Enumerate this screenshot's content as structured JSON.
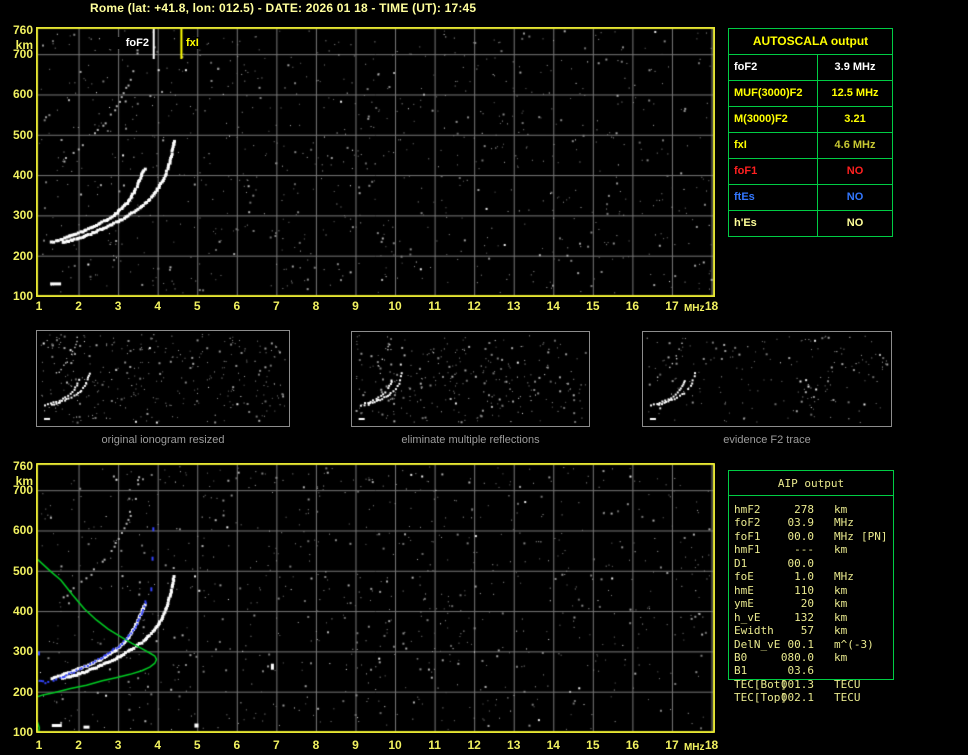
{
  "title": "Rome (lat: +41.8, lon: 012.5) - DATE: 2026 01 18 - TIME (UT): 17:45",
  "axes": {
    "x_ticks": [
      1,
      2,
      3,
      4,
      5,
      6,
      7,
      8,
      9,
      10,
      11,
      12,
      13,
      14,
      15,
      16,
      17,
      18
    ],
    "x_unit": "MHz",
    "y_ticks": [
      760,
      700,
      600,
      500,
      400,
      300,
      200,
      100
    ],
    "y_unit": "km"
  },
  "top_plot": {
    "markers": [
      {
        "name": "foF2",
        "label": "foF2",
        "freq_mhz": 3.9,
        "color": "#ffffff",
        "label_side": "left"
      },
      {
        "name": "fxI",
        "label": "fxI",
        "freq_mhz": 4.6,
        "color": "#ffff00",
        "label_side": "right"
      }
    ]
  },
  "panels": [
    {
      "caption": "original ionogram resized"
    },
    {
      "caption": "eliminate multiple reflections"
    },
    {
      "caption": "evidence F2 trace"
    }
  ],
  "autoscala": {
    "title": "AUTOSCALA output",
    "rows": [
      {
        "label": "foF2",
        "value": "3.9 MHz",
        "color": "#ffffff",
        "value_color": "#ffffff"
      },
      {
        "label": "MUF(3000)F2",
        "value": "12.5 MHz",
        "color": "#ffff00",
        "value_color": "#ffff00"
      },
      {
        "label": "M(3000)F2",
        "value": "3.21",
        "color": "#ffff00",
        "value_color": "#ffff00"
      },
      {
        "label": "fxI",
        "value": "4.6 MHz",
        "color": "#ffff00",
        "value_color": "#c8c832"
      },
      {
        "label": "foF1",
        "value": "NO",
        "color": "#ff2020",
        "value_color": "#ff2020"
      },
      {
        "label": "ftEs",
        "value": "NO",
        "color": "#3377ff",
        "value_color": "#3377ff"
      },
      {
        "label": "h'Es",
        "value": "NO",
        "color": "#ffff99",
        "value_color": "#ffff99"
      }
    ]
  },
  "aip": {
    "title": "AIP output",
    "rows": [
      {
        "label": "hmF2",
        "value": "278",
        "unit": "km",
        "note": ""
      },
      {
        "label": "foF2",
        "value": "03.9",
        "unit": "MHz",
        "note": ""
      },
      {
        "label": "foF1",
        "value": "00.0",
        "unit": "MHz",
        "note": "[PN]"
      },
      {
        "label": "hmF1",
        "value": "---",
        "unit": "km",
        "note": ""
      },
      {
        "label": "D1",
        "value": "00.0",
        "unit": "",
        "note": ""
      },
      {
        "label": "foE",
        "value": "1.0",
        "unit": "MHz",
        "note": ""
      },
      {
        "label": "hmE",
        "value": "110",
        "unit": "km",
        "note": ""
      },
      {
        "label": "ymE",
        "value": "20",
        "unit": "km",
        "note": ""
      },
      {
        "label": "h_vE",
        "value": "132",
        "unit": "km",
        "note": ""
      },
      {
        "label": "Ewidth",
        "value": "57",
        "unit": "km",
        "note": ""
      },
      {
        "label": "DelN_vE",
        "value": "00.1",
        "unit": "m^(-3)",
        "note": ""
      },
      {
        "label": "B0",
        "value": "080.0",
        "unit": "km",
        "note": ""
      },
      {
        "label": "B1",
        "value": "03.6",
        "unit": "",
        "note": ""
      },
      {
        "label": "TEC[Bot]",
        "value": "001.3",
        "unit": "TECU",
        "note": ""
      },
      {
        "label": "TEC[Top]",
        "value": "002.1",
        "unit": "TECU",
        "note": ""
      }
    ]
  },
  "traces": {
    "o_mode": [
      [
        1.32,
        233
      ],
      [
        1.5,
        238
      ],
      [
        1.7,
        245
      ],
      [
        1.9,
        252
      ],
      [
        2.1,
        260
      ],
      [
        2.3,
        268
      ],
      [
        2.5,
        277
      ],
      [
        2.7,
        288
      ],
      [
        2.9,
        300
      ],
      [
        3.05,
        313
      ],
      [
        3.2,
        327
      ],
      [
        3.32,
        343
      ],
      [
        3.42,
        360
      ],
      [
        3.5,
        377
      ],
      [
        3.57,
        393
      ],
      [
        3.63,
        407
      ],
      [
        3.68,
        416
      ],
      [
        3.73,
        421
      ]
    ],
    "x_mode": [
      [
        1.6,
        233
      ],
      [
        1.9,
        240
      ],
      [
        2.2,
        250
      ],
      [
        2.5,
        262
      ],
      [
        2.8,
        275
      ],
      [
        3.1,
        290
      ],
      [
        3.35,
        305
      ],
      [
        3.6,
        322
      ],
      [
        3.8,
        340
      ],
      [
        3.95,
        357
      ],
      [
        4.08,
        378
      ],
      [
        4.18,
        398
      ],
      [
        4.27,
        420
      ],
      [
        4.34,
        447
      ],
      [
        4.39,
        470
      ],
      [
        4.42,
        490
      ]
    ],
    "second_order": [
      [
        1.62,
        432
      ],
      [
        1.8,
        448
      ],
      [
        2.0,
        465
      ],
      [
        2.2,
        483
      ],
      [
        2.4,
        502
      ],
      [
        2.6,
        522
      ],
      [
        2.75,
        538
      ],
      [
        2.9,
        558
      ],
      [
        3.03,
        580
      ],
      [
        3.15,
        603
      ],
      [
        3.25,
        625
      ],
      [
        3.33,
        648
      ],
      [
        3.4,
        668
      ],
      [
        3.46,
        690
      ],
      [
        3.51,
        712
      ],
      [
        3.55,
        735
      ],
      [
        3.58,
        752
      ]
    ],
    "profile_green": [
      [
        0.92,
        532
      ],
      [
        1.1,
        516
      ],
      [
        1.3,
        498
      ],
      [
        1.55,
        477
      ],
      [
        1.85,
        440
      ],
      [
        2.15,
        405
      ],
      [
        2.45,
        378
      ],
      [
        2.75,
        355
      ],
      [
        3.05,
        337
      ],
      [
        3.35,
        320
      ],
      [
        3.6,
        307
      ],
      [
        3.8,
        296
      ],
      [
        3.93,
        288
      ],
      [
        3.97,
        280
      ],
      [
        3.93,
        271
      ],
      [
        3.8,
        261
      ],
      [
        3.6,
        252
      ],
      [
        3.3,
        243
      ],
      [
        3.0,
        236
      ],
      [
        2.6,
        227
      ],
      [
        2.2,
        216
      ],
      [
        1.8,
        208
      ],
      [
        1.4,
        198
      ],
      [
        1.1,
        192
      ],
      [
        0.92,
        186
      ]
    ],
    "profile_green_low": [
      [
        0.99,
        100
      ],
      [
        1.01,
        110
      ],
      [
        0.97,
        122
      ],
      [
        0.92,
        134
      ]
    ],
    "blue_trace": [
      [
        0.95,
        231
      ],
      [
        1.05,
        226
      ],
      [
        1.15,
        223
      ],
      [
        1.3,
        226
      ],
      [
        1.45,
        230
      ],
      [
        1.6,
        236
      ],
      [
        1.75,
        243
      ],
      [
        1.95,
        252
      ],
      [
        2.15,
        262
      ],
      [
        2.35,
        272
      ],
      [
        2.55,
        283
      ],
      [
        2.75,
        295
      ],
      [
        2.95,
        308
      ],
      [
        3.1,
        320
      ],
      [
        3.25,
        335
      ],
      [
        3.38,
        352
      ],
      [
        3.48,
        369
      ],
      [
        3.56,
        386
      ],
      [
        3.63,
        403
      ],
      [
        3.68,
        418
      ],
      [
        3.72,
        430
      ]
    ],
    "blue_stray": [
      [
        1.0,
        295
      ],
      [
        3.84,
        454
      ],
      [
        3.87,
        530
      ],
      [
        3.89,
        603
      ]
    ],
    "artifacts_top": [
      {
        "f": 1.42,
        "km": 130,
        "w": 11,
        "h": 3
      }
    ],
    "artifacts_bottom": [
      {
        "f": 1.45,
        "km": 116,
        "w": 10,
        "h": 3
      },
      {
        "f": 2.2,
        "km": 112,
        "w": 6,
        "h": 3
      },
      {
        "f": 4.98,
        "km": 116,
        "w": 4,
        "h": 4
      },
      {
        "f": 6.9,
        "km": 262,
        "w": 3,
        "h": 6
      }
    ]
  },
  "colors": {
    "frame": "#e6e632",
    "grid": "#787878",
    "tick_text": "#f1f160",
    "title_text": "#ffff9c",
    "table_border": "#00cc44",
    "aip_text": "#e9e98e",
    "profile": "#00cc22",
    "restored_trace": "#3344ff",
    "caption": "#9c9c9c",
    "noise": "#8c8c8c",
    "trace": "#ffffff",
    "second_order": "#b0b0b0"
  }
}
